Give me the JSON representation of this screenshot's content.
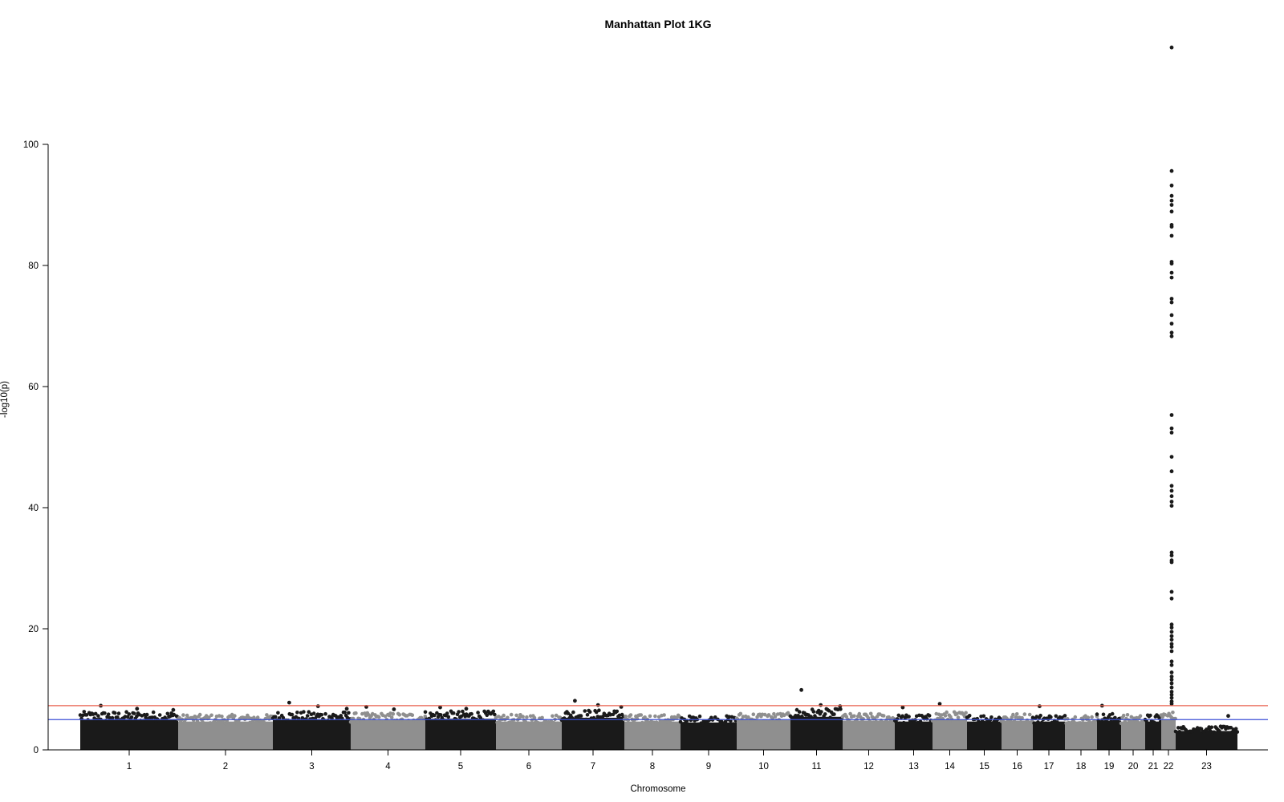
{
  "chart_data": {
    "type": "scatter",
    "subtype": "manhattan",
    "title": "Manhattan Plot 1KG",
    "xlabel": "Chromosome",
    "ylabel": "-log10(p)",
    "ylim": [
      0,
      100
    ],
    "y_ticks": [
      "0",
      "20",
      "40",
      "60",
      "80",
      "100"
    ],
    "chromosomes": [
      "1",
      "2",
      "3",
      "4",
      "5",
      "6",
      "7",
      "8",
      "9",
      "10",
      "11",
      "12",
      "13",
      "14",
      "15",
      "16",
      "17",
      "18",
      "19",
      "20",
      "21",
      "22",
      "23"
    ],
    "x_tick_labels": [
      "1",
      "2",
      "3",
      "4",
      "5",
      "6",
      "7",
      "8",
      "9",
      "10",
      "11",
      "12",
      "13",
      "14",
      "15",
      "16",
      "17",
      "18",
      "19",
      "20",
      "21",
      "22",
      "23"
    ],
    "chromosome_colors": [
      "#1a1a1a",
      "#8f8f8f"
    ],
    "thresholds": [
      {
        "value": 7.3,
        "color": "#e8614f"
      },
      {
        "value": 5.0,
        "color": "#3b4fd6"
      }
    ],
    "typical_max_per_chromosome": [
      6.5,
      6.0,
      6.5,
      6.3,
      6.6,
      6.0,
      6.8,
      6.0,
      5.8,
      6.3,
      7.0,
      6.2,
      6.0,
      6.5,
      6.0,
      6.2,
      6.0,
      6.0,
      6.2,
      6.0,
      6.0,
      6.5,
      4.0
    ],
    "peaks": [
      {
        "chromosome": "1",
        "values": [
          7.3,
          6.8,
          6.6
        ]
      },
      {
        "chromosome": "3",
        "values": [
          7.8,
          7.2,
          6.8
        ]
      },
      {
        "chromosome": "4",
        "values": [
          7.1,
          6.7
        ]
      },
      {
        "chromosome": "5",
        "values": [
          7.0,
          6.8
        ]
      },
      {
        "chromosome": "7",
        "values": [
          8.1,
          7.4,
          7.1
        ]
      },
      {
        "chromosome": "11",
        "values": [
          9.9,
          7.4,
          7.2
        ]
      },
      {
        "chromosome": "13",
        "values": [
          7.0
        ]
      },
      {
        "chromosome": "14",
        "values": [
          7.6
        ]
      },
      {
        "chromosome": "17",
        "values": [
          7.2
        ]
      },
      {
        "chromosome": "19",
        "values": [
          7.3
        ]
      },
      {
        "chromosome": "22",
        "values": [
          116,
          95.6,
          93.2,
          91.5,
          90.7,
          90,
          88.9,
          86.7,
          86.4,
          84.9,
          80.6,
          80.3,
          78.8,
          78,
          74.5,
          73.9,
          71.8,
          70.4,
          68.9,
          68.3,
          55.3,
          53.1,
          52.4,
          48.4,
          46,
          43.6,
          42.8,
          41.9,
          41,
          40.3,
          32.6,
          32.1,
          31.3,
          31,
          26.1,
          25,
          20.7,
          20.2,
          19.5,
          18.8,
          18.2,
          17.5,
          17,
          16.3,
          14.6,
          14,
          12.8,
          12.1,
          11.6,
          11,
          10.3,
          9.6,
          9.1,
          8.6,
          8,
          7.6
        ]
      },
      {
        "chromosome": "23",
        "values": [
          3.5,
          2.6,
          2.5,
          5.6
        ]
      }
    ]
  }
}
